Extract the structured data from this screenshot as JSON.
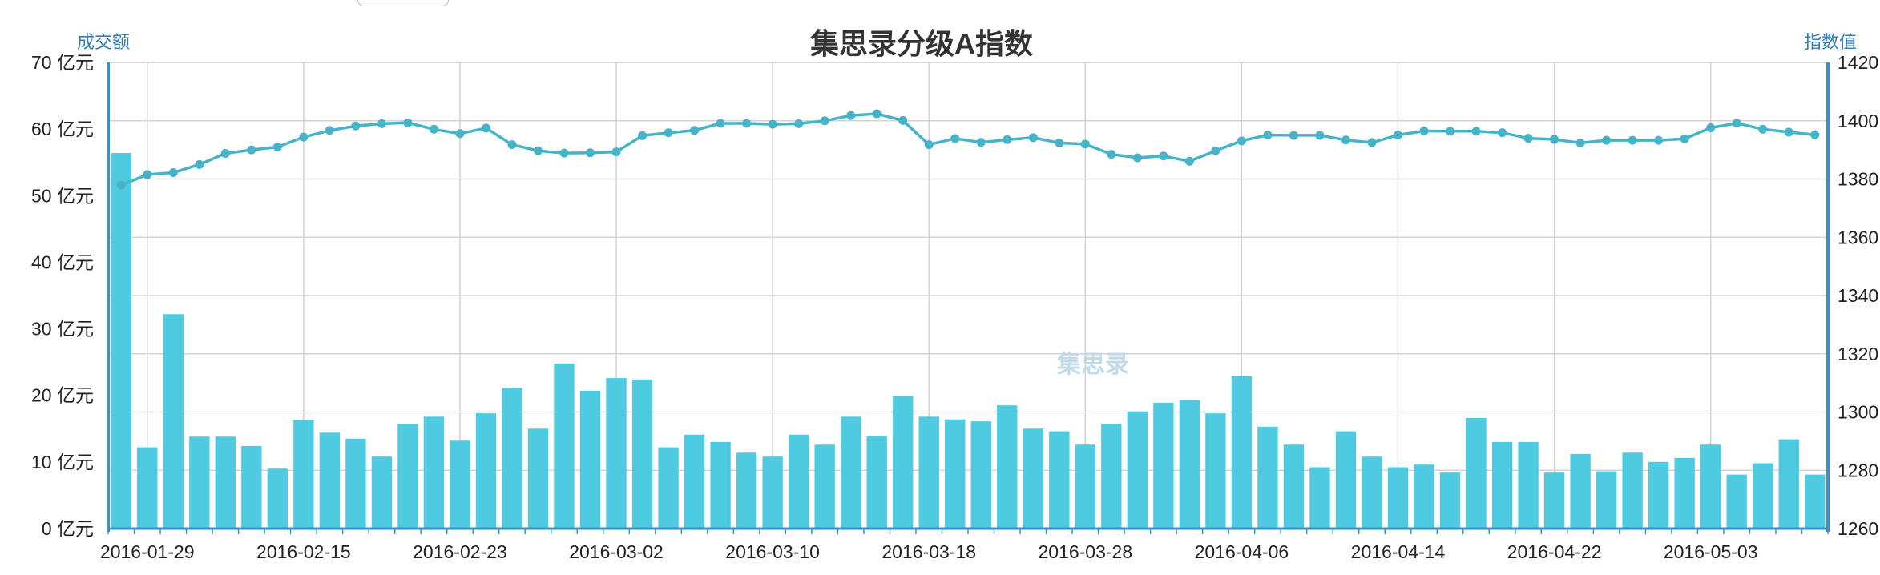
{
  "colors": {
    "bar": "#4ecbe0",
    "line": "#45b3c8",
    "axis": "#3a8fc4",
    "axis_label": "#2e7db8",
    "grid": "#d4d4d4",
    "title": "#333333",
    "watermark": "#c3dbe8"
  },
  "chart_data": {
    "type": "bar+line",
    "title": "集思录分级A指数",
    "watermark": "集思录",
    "y_left_label": "成交额",
    "y_right_label": "指数值",
    "y_left_unit": "亿元",
    "y_left_ticks": [
      "0 亿元",
      "10 亿元",
      "20 亿元",
      "30 亿元",
      "40 亿元",
      "50 亿元",
      "60 亿元",
      "70 亿元"
    ],
    "y_left_range": [
      0,
      70
    ],
    "y_right_ticks": [
      "1260",
      "1280",
      "1300",
      "1320",
      "1340",
      "1360",
      "1380",
      "1400",
      "1420"
    ],
    "y_right_range": [
      1260,
      1420
    ],
    "x_tick_labels": [
      "2016-01-29",
      "2016-02-15",
      "2016-02-23",
      "2016-03-02",
      "2016-03-10",
      "2016-03-18",
      "2016-03-28",
      "2016-04-06",
      "2016-04-14",
      "2016-04-22",
      "2016-05-03"
    ],
    "x_tick_label_start_index": 1,
    "x_tick_label_step": 6,
    "num_points": 66,
    "grid": true,
    "series": [
      {
        "name": "成交额",
        "type": "bar",
        "axis": "left",
        "values": [
          56.4,
          12.2,
          32.2,
          13.8,
          13.8,
          12.4,
          9.0,
          16.3,
          14.4,
          13.5,
          10.8,
          15.7,
          16.8,
          13.2,
          17.3,
          21.1,
          15.0,
          24.8,
          20.7,
          22.6,
          22.4,
          12.2,
          14.1,
          13.0,
          11.4,
          10.8,
          14.1,
          12.6,
          16.8,
          13.9,
          19.9,
          16.8,
          16.4,
          16.1,
          18.5,
          15.0,
          14.6,
          12.6,
          15.7,
          17.6,
          18.9,
          19.3,
          17.3,
          22.9,
          15.3,
          12.6,
          9.2,
          14.6,
          10.8,
          9.2,
          9.6,
          8.4,
          16.6,
          13.0,
          13.0,
          8.4,
          11.2,
          8.6,
          11.4,
          10.0,
          10.6,
          12.6,
          8.1,
          9.8,
          13.4,
          8.1
        ]
      },
      {
        "name": "指数值",
        "type": "line",
        "axis": "right",
        "values": [
          1377.9,
          1381.5,
          1382.2,
          1385.0,
          1388.8,
          1390.0,
          1391.0,
          1394.4,
          1396.7,
          1398.2,
          1399.0,
          1399.3,
          1397.1,
          1395.6,
          1397.5,
          1391.8,
          1389.7,
          1388.9,
          1389.0,
          1389.3,
          1394.9,
          1395.9,
          1396.7,
          1399.1,
          1399.1,
          1398.8,
          1399.0,
          1400.0,
          1401.8,
          1402.4,
          1400.1,
          1391.8,
          1393.9,
          1392.6,
          1393.5,
          1394.2,
          1392.4,
          1392.0,
          1388.5,
          1387.3,
          1387.9,
          1386.1,
          1389.7,
          1393.1,
          1395.1,
          1395.0,
          1395.0,
          1393.4,
          1392.5,
          1395.1,
          1396.5,
          1396.4,
          1396.4,
          1395.9,
          1394.0,
          1393.6,
          1392.4,
          1393.3,
          1393.3,
          1393.3,
          1393.8,
          1397.6,
          1399.2,
          1397.1,
          1396.1,
          1395.2
        ]
      }
    ]
  }
}
